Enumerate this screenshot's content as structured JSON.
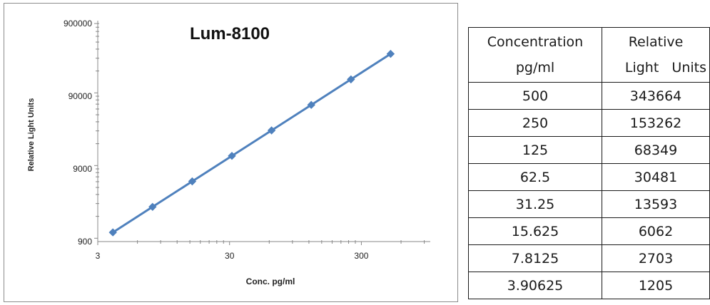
{
  "chart_data": {
    "type": "line",
    "title": "Lum-8100",
    "xlabel": "Conc. pg/ml",
    "ylabel": "Relative Light Units",
    "x_scale": "log",
    "y_scale": "log",
    "xlim": [
      3,
      1000
    ],
    "ylim": [
      900,
      900000
    ],
    "x_ticks": [
      "3",
      "30",
      "300"
    ],
    "y_ticks": [
      "900",
      "9000",
      "90000",
      "900000"
    ],
    "grid": false,
    "legend": "none",
    "series": [
      {
        "color": "#4f81bd",
        "marker": "diamond",
        "x": [
          3.90625,
          7.8125,
          15.625,
          31.25,
          62.5,
          125,
          250,
          500
        ],
        "y": [
          1205,
          2703,
          6062,
          13593,
          30481,
          68349,
          153262,
          343664
        ]
      }
    ]
  },
  "table": {
    "headers": [
      [
        "Concentration",
        "pg/ml"
      ],
      [
        "Relative",
        "Light   Units"
      ]
    ],
    "rows": [
      [
        "500",
        "343664"
      ],
      [
        "250",
        "153262"
      ],
      [
        "125",
        "68349"
      ],
      [
        "62.5",
        "30481"
      ],
      [
        "31.25",
        "13593"
      ],
      [
        "15.625",
        "6062"
      ],
      [
        "7.8125",
        "2703"
      ],
      [
        "3.90625",
        "1205"
      ]
    ]
  }
}
